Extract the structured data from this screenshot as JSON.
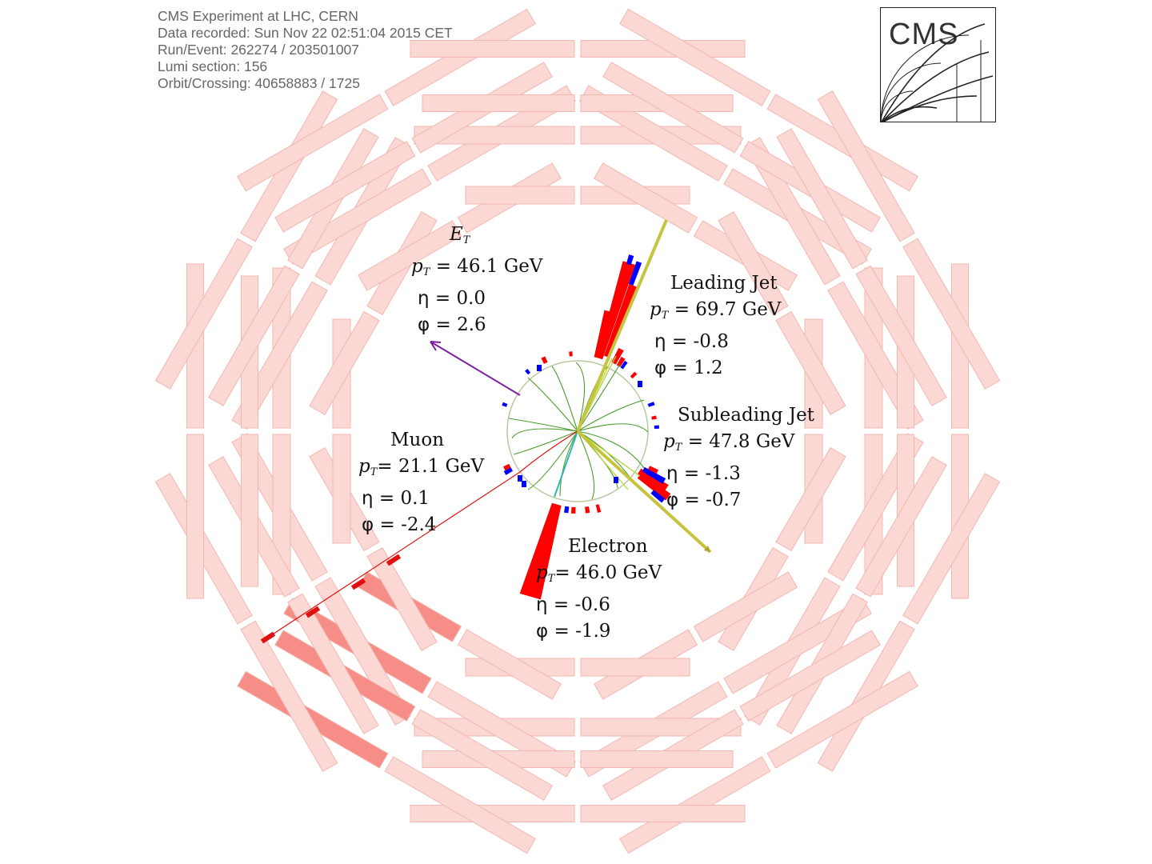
{
  "header": {
    "lines": [
      "CMS Experiment at LHC, CERN",
      "Data recorded: Sun Nov 22 02:51:04 2015 CET",
      "Run/Event: 262274 / 203501007",
      "Lumi section: 156",
      "Orbit/Crossing: 40658883 / 1725"
    ]
  },
  "logo": {
    "text": "CMS"
  },
  "colors": {
    "chamber": "#fcd8d4",
    "chamber_stroke": "#f2b7b1",
    "chamber_hit": "#f68d87",
    "calo_red": "#ff0000",
    "calo_blue": "#0000ff",
    "jet_axis": "#c6c43c",
    "met_arrow": "#7a1fa2",
    "tracker_tracks": "#4a9a2a",
    "electron_track": "#33b7b0"
  },
  "objects": {
    "met": {
      "title_main": "E",
      "title_sub": "T",
      "pt_label": "p",
      "pt_sub": "T",
      "pt_value": "= 46.1 GeV",
      "eta_label": "η",
      "eta_value": "= 0.0",
      "phi_label": "φ",
      "phi_value": "= 2.6"
    },
    "leading_jet": {
      "title": "Leading Jet",
      "pt_label": "p",
      "pt_sub": "T",
      "pt_value": "= 69.7 GeV",
      "eta_label": "η",
      "eta_value": "= -0.8",
      "phi_label": "φ",
      "phi_value": "= 1.2"
    },
    "subleading_jet": {
      "title": "Subleading Jet",
      "pt_label": "p",
      "pt_sub": "T",
      "pt_value": "= 47.8 GeV",
      "eta_label": "η",
      "eta_value": "= -1.3",
      "phi_label": "φ",
      "phi_value": "= -0.7"
    },
    "muon": {
      "title": "Muon",
      "pt_label": "p",
      "pt_sub": "T",
      "pt_value": "= 21.1 GeV",
      "eta_label": "η",
      "eta_value": "= 0.1",
      "phi_label": "φ",
      "phi_value": "= -2.4"
    },
    "electron": {
      "title": "Electron",
      "pt_label": "p",
      "pt_sub": "T",
      "pt_value": "= 46.0 GeV",
      "eta_label": "η",
      "eta_value": "= -0.6",
      "phi_label": "φ",
      "phi_value": "= -1.9"
    }
  }
}
